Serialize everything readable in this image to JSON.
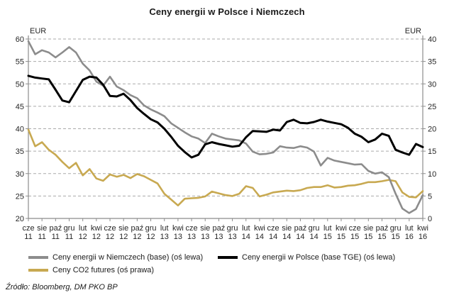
{
  "title": "Ceny energii w Polsce i Niemczech",
  "source_note": "Źródło: Bloomberg, DM PKO BP",
  "axes": {
    "left_unit": "EUR",
    "right_unit": "EUR",
    "left_ticks": [
      60,
      55,
      50,
      45,
      40,
      35,
      30,
      25,
      20
    ],
    "right_ticks": [
      40,
      35,
      30,
      25,
      20,
      15,
      10,
      5,
      0
    ]
  },
  "x_ticks": [
    {
      "month": "cze",
      "year": "11"
    },
    {
      "month": "sie",
      "year": "11"
    },
    {
      "month": "paź",
      "year": "11"
    },
    {
      "month": "gru",
      "year": "11"
    },
    {
      "month": "lut",
      "year": "12"
    },
    {
      "month": "kwi",
      "year": "12"
    },
    {
      "month": "cze",
      "year": "12"
    },
    {
      "month": "sie",
      "year": "12"
    },
    {
      "month": "paź",
      "year": "12"
    },
    {
      "month": "gru",
      "year": "12"
    },
    {
      "month": "lut",
      "year": "13"
    },
    {
      "month": "kwi",
      "year": "13"
    },
    {
      "month": "cze",
      "year": "13"
    },
    {
      "month": "sie",
      "year": "13"
    },
    {
      "month": "paź",
      "year": "13"
    },
    {
      "month": "gru",
      "year": "13"
    },
    {
      "month": "lut",
      "year": "14"
    },
    {
      "month": "kwi",
      "year": "14"
    },
    {
      "month": "cze",
      "year": "14"
    },
    {
      "month": "sie",
      "year": "14"
    },
    {
      "month": "paź",
      "year": "14"
    },
    {
      "month": "gru",
      "year": "14"
    },
    {
      "month": "lut",
      "year": "15"
    },
    {
      "month": "kwi",
      "year": "15"
    },
    {
      "month": "cze",
      "year": "15"
    },
    {
      "month": "sie",
      "year": "15"
    },
    {
      "month": "paź",
      "year": "15"
    },
    {
      "month": "gru",
      "year": "15"
    },
    {
      "month": "lut",
      "year": "16"
    },
    {
      "month": "kwi",
      "year": "16"
    }
  ],
  "legend": {
    "items": [
      {
        "id": "germany",
        "label": "Ceny energii w Niemczech (base) (oś lewa)",
        "color": "#8c8c8c"
      },
      {
        "id": "poland",
        "label": "Ceny energii w Polsce (base TGE) (oś lewa)",
        "color": "#000000"
      },
      {
        "id": "co2",
        "label": "Ceny CO2 futures (oś prawa)",
        "color": "#c8a951"
      }
    ]
  },
  "colors": {
    "grid": "#aaaaaa",
    "axis": "#8c8c8c",
    "text": "#262626"
  },
  "chart_data": {
    "type": "line",
    "title": "Ceny energii w Polsce i Niemczech",
    "x_start": "2011-06",
    "x_end": "2016-04",
    "x_step_months": 1,
    "x_tick_every_months": 2,
    "grid": "horizontal-dashed",
    "legend_position": "bottom",
    "left_ylim": [
      20,
      60
    ],
    "right_ylim": [
      0,
      40
    ],
    "ylabel_left": "EUR",
    "ylabel_right": "EUR",
    "series": [
      {
        "name": "Ceny energii w Niemczech (base)",
        "axis": "left",
        "color": "#8c8c8c",
        "stroke_width": 2.6,
        "values": [
          59.5,
          56.6,
          57.5,
          57.0,
          55.9,
          57.0,
          58.2,
          57.0,
          54.5,
          53.0,
          50.5,
          49.6,
          51.6,
          49.4,
          48.6,
          47.5,
          46.8,
          45.2,
          44.3,
          43.6,
          42.8,
          41.2,
          40.2,
          39.2,
          38.3,
          37.8,
          36.8,
          38.9,
          38.3,
          37.8,
          37.6,
          37.4,
          36.7,
          34.9,
          34.3,
          34.4,
          34.7,
          36.1,
          35.8,
          35.7,
          36.1,
          35.8,
          34.9,
          31.8,
          33.5,
          32.9,
          32.6,
          32.3,
          32.0,
          32.1,
          30.6,
          30.0,
          30.3,
          29.2,
          25.5,
          22.2,
          21.2,
          22.1,
          25.2
        ]
      },
      {
        "name": "Ceny energii w Polsce (base TGE)",
        "axis": "left",
        "color": "#000000",
        "stroke_width": 3,
        "values": [
          51.8,
          51.4,
          51.2,
          51.0,
          48.7,
          46.3,
          45.9,
          48.4,
          50.9,
          51.6,
          51.4,
          49.8,
          47.3,
          47.2,
          47.8,
          46.4,
          44.6,
          43.3,
          42.1,
          41.4,
          40.0,
          38.2,
          36.2,
          34.8,
          33.6,
          34.2,
          36.5,
          37.0,
          36.6,
          36.3,
          36.0,
          36.2,
          38.1,
          39.5,
          39.4,
          39.3,
          39.8,
          39.6,
          41.5,
          42.0,
          41.3,
          41.2,
          41.5,
          42.0,
          41.6,
          41.3,
          41.0,
          40.2,
          38.9,
          38.2,
          37.0,
          37.6,
          38.9,
          38.4,
          35.3,
          34.7,
          34.2,
          36.6,
          35.9
        ]
      },
      {
        "name": "Ceny CO2 futures",
        "axis": "right",
        "color": "#c8a951",
        "stroke_width": 2.6,
        "values": [
          19.8,
          16.1,
          17.0,
          15.3,
          14.2,
          12.6,
          11.2,
          12.4,
          9.6,
          11.0,
          8.9,
          8.4,
          9.8,
          9.3,
          9.7,
          9.0,
          9.9,
          9.4,
          8.6,
          7.8,
          5.5,
          4.2,
          2.9,
          4.4,
          4.5,
          4.6,
          4.9,
          6.0,
          5.6,
          5.2,
          5.0,
          5.5,
          7.2,
          6.8,
          4.9,
          5.3,
          5.8,
          6.0,
          6.2,
          6.1,
          6.3,
          6.8,
          7.0,
          7.0,
          7.4,
          6.9,
          7.0,
          7.3,
          7.4,
          7.7,
          8.1,
          8.1,
          8.3,
          8.6,
          8.3,
          5.8,
          4.8,
          4.7,
          6.1
        ]
      }
    ]
  }
}
